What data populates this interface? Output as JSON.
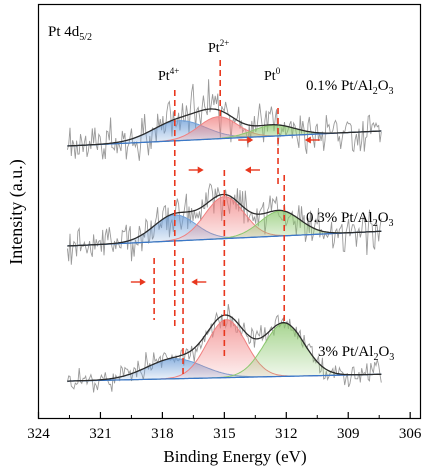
{
  "chart_data": {
    "type": "line",
    "title": "Pt 4d5/2",
    "title_parts": {
      "main": "Pt 4d",
      "sub": "5/2"
    },
    "xlabel": "Binding Energy (eV)",
    "ylabel": "Intensity (a.u.)",
    "x_reversed": true,
    "xlim": [
      324,
      305.5
    ],
    "xticks": [
      324,
      321,
      318,
      315,
      312,
      309,
      306
    ],
    "grid": false,
    "y_ticks_shown": false,
    "peak_labels": [
      {
        "id": "pt4",
        "base": "Pt",
        "sup": "4+",
        "x_eV": 317.7
      },
      {
        "id": "pt2",
        "base": "Pt",
        "sup": "2+",
        "x_eV": 315.2
      },
      {
        "id": "pt0",
        "base": "Pt",
        "sup": "0",
        "x_eV": 312.4
      }
    ],
    "series": [
      {
        "name": "0.1% Pt/Al2O3",
        "label_parts": {
          "prefix": "0.1% Pt/Al",
          "sub1": "2",
          "mid": "O",
          "sub2": "3"
        },
        "offset": 235,
        "amplitude": 1.0,
        "noise": 22,
        "baseline": {
          "a": 1.0,
          "b": 0.99
        },
        "components": [
          {
            "name": "Pt4+",
            "color": "#6f9fd8",
            "center": 317.2,
            "height": 20,
            "fwhm": 3.0
          },
          {
            "name": "Pt2+",
            "color": "#f08080",
            "center": 315.3,
            "height": 22,
            "fwhm": 2.2
          },
          {
            "name": "Pt0",
            "color": "#8cc86e",
            "center": 312.6,
            "height": 11,
            "fwhm": 2.4
          }
        ],
        "peak_markers_eV": [
          315.2,
          312.4
        ],
        "arrows_eV": [
          313.6,
          311.1
        ]
      },
      {
        "name": "0.3% Pt/Al2O3",
        "label_parts": {
          "prefix": "0.3% Pt/Al",
          "sub1": "2",
          "mid": "O",
          "sub2": "3"
        },
        "offset": 135,
        "amplitude": 1.0,
        "noise": 20,
        "baseline": {
          "a": 1.0,
          "b": 0.97
        },
        "components": [
          {
            "name": "Pt4+",
            "color": "#6f9fd8",
            "center": 317.4,
            "height": 26,
            "fwhm": 2.4
          },
          {
            "name": "Pt2+",
            "color": "#f08080",
            "center": 315.0,
            "height": 42,
            "fwhm": 2.2
          },
          {
            "name": "Pt0",
            "color": "#8cc86e",
            "center": 312.3,
            "height": 25,
            "fwhm": 2.3
          }
        ],
        "peak_markers_eV": [
          315.0
        ],
        "arrows_eV": [
          316.0,
          314.0
        ]
      },
      {
        "name": "3% Pt/Al2O3",
        "label_parts": {
          "prefix": "3% Pt/Al",
          "sub1": "2",
          "mid": "O",
          "sub2": "3"
        },
        "offset": 0,
        "amplitude": 1.0,
        "noise": 12,
        "baseline": {
          "a": 0.9,
          "b": 0.45
        },
        "components": [
          {
            "name": "Pt4+",
            "color": "#6f9fd8",
            "center": 317.4,
            "height": 20,
            "fwhm": 3.2
          },
          {
            "name": "Pt2+",
            "color": "#f08080",
            "center": 314.9,
            "height": 58,
            "fwhm": 2.2
          },
          {
            "name": "Pt0",
            "color": "#8cc86e",
            "center": 312.1,
            "height": 53,
            "fwhm": 2.3
          }
        ],
        "peak_markers_eV": [
          317.4,
          314.9,
          312.1
        ],
        "arrows_eV": [
          318.8,
          316.6
        ]
      }
    ],
    "colors": {
      "raw": "#9a9a9a",
      "envelope": "#2b2b2b",
      "baseline": "#3c78c8",
      "marker": "#e8371e",
      "axis": "#000000"
    }
  }
}
